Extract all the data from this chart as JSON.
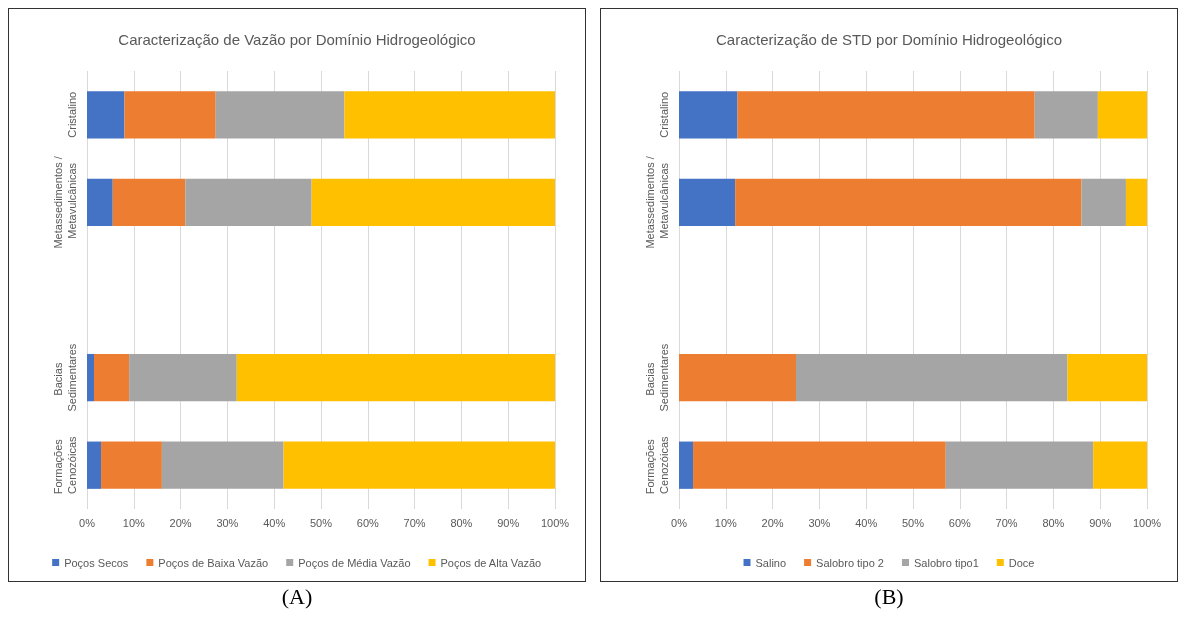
{
  "chart_data": [
    {
      "type": "bar",
      "orientation": "horizontal",
      "stacked": true,
      "title": "Caracterização de Vazão por Domínio Hidrogeológico",
      "categories": [
        "Cristalino",
        "Metassedimentos / Metavulcânicas",
        null,
        "Bacias Sedimentares",
        "Formações Cenozóicas"
      ],
      "series": [
        {
          "name": "Poços Secos",
          "color": "#4472c4",
          "values": [
            8,
            5.5,
            null,
            1.5,
            3
          ]
        },
        {
          "name": "Poços de Baixa Vazão",
          "color": "#ed7d31",
          "values": [
            19.5,
            15.5,
            null,
            7.5,
            13
          ]
        },
        {
          "name": "Poços de Média Vazão",
          "color": "#a5a5a5",
          "values": [
            27.5,
            27,
            null,
            23,
            26
          ]
        },
        {
          "name": "Poços de Alta Vazão",
          "color": "#ffc000",
          "values": [
            45,
            52,
            null,
            68,
            58
          ]
        }
      ],
      "xlim": [
        0,
        100
      ],
      "xticks": [
        {
          "value": 0,
          "label": "0%"
        },
        {
          "value": 10,
          "label": "10%"
        },
        {
          "value": 20,
          "label": "20%"
        },
        {
          "value": 30,
          "label": "30%"
        },
        {
          "value": 40,
          "label": "40%"
        },
        {
          "value": 50,
          "label": "50%"
        },
        {
          "value": 60,
          "label": "60%"
        },
        {
          "value": 70,
          "label": "70%"
        },
        {
          "value": 80,
          "label": "80%"
        },
        {
          "value": 90,
          "label": "90%"
        },
        {
          "value": 100,
          "label": "100%"
        }
      ],
      "grid": "x",
      "legend": "bottom",
      "annotations": [
        "(A)"
      ]
    },
    {
      "type": "bar",
      "orientation": "horizontal",
      "stacked": true,
      "title": "Caracterização de STD por Domínio Hidrogeológico",
      "categories": [
        "Cristalino",
        "Metassedimentos / Metavulcânicas",
        null,
        "Bacias Sedimentares",
        "Formações Cenozóicas"
      ],
      "series": [
        {
          "name": "Salino",
          "color": "#4472c4",
          "values": [
            12.5,
            12,
            null,
            0,
            3
          ]
        },
        {
          "name": "Salobro tipo 2",
          "color": "#ed7d31",
          "values": [
            63.5,
            74,
            null,
            25,
            54
          ]
        },
        {
          "name": "Salobro tipo1",
          "color": "#a5a5a5",
          "values": [
            13.5,
            9.5,
            null,
            58,
            31.5
          ]
        },
        {
          "name": "Doce",
          "color": "#ffc000",
          "values": [
            10.5,
            4.5,
            null,
            17,
            11.5
          ]
        }
      ],
      "xlim": [
        0,
        100
      ],
      "xticks": [
        {
          "value": 0,
          "label": "0%"
        },
        {
          "value": 10,
          "label": "10%"
        },
        {
          "value": 20,
          "label": "20%"
        },
        {
          "value": 30,
          "label": "30%"
        },
        {
          "value": 40,
          "label": "40%"
        },
        {
          "value": 50,
          "label": "50%"
        },
        {
          "value": 60,
          "label": "60%"
        },
        {
          "value": 70,
          "label": "70%"
        },
        {
          "value": 80,
          "label": "80%"
        },
        {
          "value": 90,
          "label": "90%"
        },
        {
          "value": 100,
          "label": "100%"
        }
      ],
      "grid": "x",
      "legend": "bottom",
      "annotations": [
        "(B)"
      ]
    }
  ]
}
